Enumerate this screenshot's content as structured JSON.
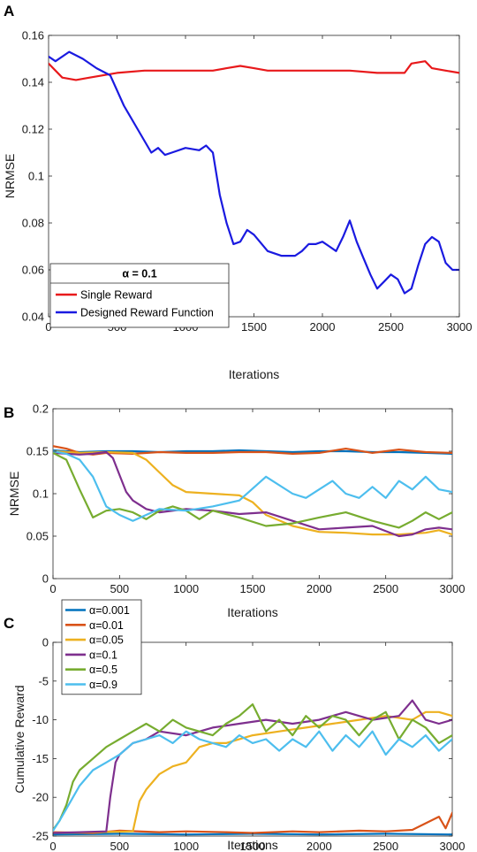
{
  "panel_labels": [
    "A",
    "B",
    "C"
  ],
  "chart_data": [
    {
      "type": "line",
      "xlabel": "Iterations",
      "ylabel": "NRMSE",
      "xlim": [
        0,
        3000
      ],
      "ylim": [
        0.04,
        0.16
      ],
      "xticks": [
        0,
        500,
        1000,
        1500,
        2000,
        2500,
        3000
      ],
      "yticks": [
        0.04,
        0.06,
        0.08,
        0.1,
        0.12,
        0.14,
        0.16
      ],
      "ytick_labels": [
        "0.04",
        "0.06",
        "0.08",
        "0.1",
        "0.12",
        "0.14",
        "0.16"
      ],
      "grid": false,
      "legend": {
        "title": "α = 0.1",
        "position": "bottom-left"
      },
      "series": [
        {
          "name": "Single Reward",
          "color": "#e8191b",
          "x": [
            0,
            100,
            200,
            300,
            400,
            500,
            700,
            900,
            1000,
            1200,
            1300,
            1400,
            1500,
            1600,
            1800,
            2000,
            2200,
            2400,
            2600,
            2650,
            2750,
            2800,
            2900,
            3000
          ],
          "y": [
            0.148,
            0.142,
            0.141,
            0.142,
            0.143,
            0.144,
            0.145,
            0.145,
            0.145,
            0.145,
            0.146,
            0.147,
            0.146,
            0.145,
            0.145,
            0.145,
            0.145,
            0.144,
            0.144,
            0.148,
            0.149,
            0.146,
            0.145,
            0.144
          ]
        },
        {
          "name": "Designed Reward Function",
          "color": "#1a1ae0",
          "x": [
            0,
            50,
            150,
            250,
            350,
            450,
            550,
            650,
            750,
            800,
            850,
            900,
            1000,
            1100,
            1150,
            1200,
            1250,
            1300,
            1350,
            1400,
            1450,
            1500,
            1600,
            1700,
            1800,
            1850,
            1900,
            1950,
            2000,
            2050,
            2100,
            2150,
            2200,
            2250,
            2300,
            2350,
            2400,
            2450,
            2500,
            2550,
            2600,
            2650,
            2700,
            2750,
            2800,
            2850,
            2900,
            2950,
            3000
          ],
          "y": [
            0.151,
            0.149,
            0.153,
            0.15,
            0.146,
            0.143,
            0.13,
            0.12,
            0.11,
            0.112,
            0.109,
            0.11,
            0.112,
            0.111,
            0.113,
            0.11,
            0.092,
            0.08,
            0.071,
            0.072,
            0.077,
            0.075,
            0.068,
            0.066,
            0.066,
            0.068,
            0.071,
            0.071,
            0.072,
            0.07,
            0.068,
            0.074,
            0.081,
            0.072,
            0.065,
            0.058,
            0.052,
            0.055,
            0.058,
            0.056,
            0.05,
            0.052,
            0.062,
            0.071,
            0.074,
            0.072,
            0.063,
            0.06,
            0.06
          ]
        }
      ]
    },
    {
      "type": "line",
      "xlabel": "Iterations",
      "ylabel": "NRMSE",
      "xlim": [
        0,
        3000
      ],
      "ylim": [
        0,
        0.2
      ],
      "xticks": [
        0,
        500,
        1000,
        1500,
        2000,
        2500,
        3000
      ],
      "yticks": [
        0,
        0.05,
        0.1,
        0.15,
        0.2
      ],
      "ytick_labels": [
        "0",
        "0.05",
        "0.1",
        "0.15",
        "0.2"
      ],
      "grid": false,
      "series": [
        {
          "name": "α=0.001",
          "color": "#0072bd",
          "x": [
            0,
            200,
            400,
            600,
            800,
            1000,
            1200,
            1400,
            1600,
            1800,
            2000,
            2200,
            2400,
            2600,
            2800,
            3000
          ],
          "y": [
            0.151,
            0.149,
            0.15,
            0.15,
            0.149,
            0.15,
            0.15,
            0.151,
            0.15,
            0.149,
            0.15,
            0.15,
            0.149,
            0.149,
            0.148,
            0.147
          ]
        },
        {
          "name": "α=0.01",
          "color": "#d95319",
          "x": [
            0,
            100,
            200,
            300,
            400,
            600,
            800,
            1000,
            1200,
            1400,
            1600,
            1800,
            2000,
            2200,
            2400,
            2600,
            2800,
            3000
          ],
          "y": [
            0.156,
            0.153,
            0.148,
            0.146,
            0.148,
            0.147,
            0.149,
            0.148,
            0.148,
            0.149,
            0.149,
            0.147,
            0.148,
            0.153,
            0.148,
            0.152,
            0.149,
            0.148
          ]
        },
        {
          "name": "α=0.05",
          "color": "#edb120",
          "x": [
            0,
            200,
            400,
            600,
            700,
            800,
            900,
            1000,
            1200,
            1400,
            1500,
            1600,
            1800,
            2000,
            2200,
            2400,
            2600,
            2800,
            2900,
            3000
          ],
          "y": [
            0.15,
            0.148,
            0.149,
            0.148,
            0.14,
            0.125,
            0.11,
            0.102,
            0.1,
            0.098,
            0.09,
            0.075,
            0.062,
            0.055,
            0.054,
            0.052,
            0.052,
            0.054,
            0.057,
            0.052
          ]
        },
        {
          "name": "α=0.1",
          "color": "#7e2f8e",
          "x": [
            0,
            200,
            300,
            400,
            450,
            500,
            550,
            600,
            700,
            800,
            1000,
            1200,
            1400,
            1600,
            1800,
            2000,
            2200,
            2400,
            2600,
            2700,
            2800,
            2900,
            3000
          ],
          "y": [
            0.148,
            0.146,
            0.147,
            0.149,
            0.142,
            0.122,
            0.102,
            0.092,
            0.082,
            0.078,
            0.082,
            0.08,
            0.076,
            0.078,
            0.068,
            0.058,
            0.06,
            0.062,
            0.05,
            0.052,
            0.058,
            0.06,
            0.058
          ]
        },
        {
          "name": "α=0.5",
          "color": "#77ac30",
          "x": [
            0,
            100,
            200,
            300,
            400,
            500,
            600,
            700,
            800,
            900,
            1000,
            1100,
            1200,
            1400,
            1600,
            1800,
            2000,
            2200,
            2400,
            2600,
            2700,
            2800,
            2900,
            3000
          ],
          "y": [
            0.148,
            0.14,
            0.105,
            0.072,
            0.08,
            0.082,
            0.078,
            0.07,
            0.08,
            0.085,
            0.08,
            0.07,
            0.08,
            0.072,
            0.062,
            0.065,
            0.072,
            0.078,
            0.068,
            0.06,
            0.068,
            0.078,
            0.07,
            0.078
          ]
        },
        {
          "name": "α=0.9",
          "color": "#4dbeee",
          "x": [
            0,
            100,
            200,
            300,
            400,
            500,
            600,
            700,
            800,
            1000,
            1200,
            1400,
            1600,
            1800,
            1900,
            2000,
            2100,
            2200,
            2300,
            2400,
            2500,
            2600,
            2700,
            2800,
            2900,
            3000
          ],
          "y": [
            0.15,
            0.147,
            0.14,
            0.12,
            0.085,
            0.075,
            0.068,
            0.075,
            0.082,
            0.08,
            0.085,
            0.092,
            0.12,
            0.1,
            0.095,
            0.105,
            0.115,
            0.1,
            0.095,
            0.108,
            0.095,
            0.115,
            0.105,
            0.12,
            0.105,
            0.102
          ]
        }
      ]
    },
    {
      "type": "line",
      "xlabel": "Iterations",
      "ylabel": "Cumulative Reward",
      "xlim": [
        0,
        3000
      ],
      "ylim": [
        -25,
        0
      ],
      "xticks": [
        0,
        500,
        1000,
        1500,
        2000,
        2500,
        3000
      ],
      "yticks": [
        -25,
        -20,
        -15,
        -10,
        -5,
        0
      ],
      "ytick_labels": [
        "-25",
        "-20",
        "-15",
        "-10",
        "-5",
        "0"
      ],
      "grid": false,
      "legend": {
        "position": "top-left",
        "entries": [
          "α=0.001",
          "α=0.01",
          "α=0.05",
          "α=0.1",
          "α=0.5",
          "α=0.9"
        ]
      },
      "series": [
        {
          "name": "α=0.001",
          "color": "#0072bd",
          "x": [
            0,
            500,
            1000,
            1500,
            2000,
            2500,
            3000
          ],
          "y": [
            -24.8,
            -24.7,
            -24.8,
            -24.7,
            -24.8,
            -24.7,
            -24.8
          ]
        },
        {
          "name": "α=0.01",
          "color": "#d95319",
          "x": [
            0,
            300,
            500,
            800,
            1000,
            1300,
            1500,
            1800,
            2000,
            2300,
            2500,
            2700,
            2900,
            2950,
            3000
          ],
          "y": [
            -24.5,
            -24.6,
            -24.3,
            -24.5,
            -24.4,
            -24.5,
            -24.6,
            -24.4,
            -24.5,
            -24.3,
            -24.4,
            -24.2,
            -22.5,
            -24.0,
            -22.0
          ]
        },
        {
          "name": "α=0.05",
          "color": "#edb120",
          "x": [
            0,
            300,
            600,
            650,
            700,
            800,
            900,
            1000,
            1100,
            1200,
            1300,
            1500,
            1700,
            1900,
            2100,
            2300,
            2500,
            2700,
            2800,
            2900,
            3000
          ],
          "y": [
            -24.6,
            -24.5,
            -24.4,
            -20.5,
            -19.0,
            -17.0,
            -16.0,
            -15.5,
            -13.5,
            -13.0,
            -13.0,
            -12.0,
            -11.5,
            -11.0,
            -10.5,
            -10.0,
            -9.5,
            -10.0,
            -9.0,
            -9.0,
            -9.5
          ]
        },
        {
          "name": "α=0.1",
          "color": "#7e2f8e",
          "x": [
            0,
            200,
            400,
            430,
            470,
            500,
            600,
            700,
            800,
            1000,
            1200,
            1400,
            1600,
            1800,
            2000,
            2200,
            2400,
            2600,
            2700,
            2800,
            2900,
            3000
          ],
          "y": [
            -24.6,
            -24.5,
            -24.4,
            -20.0,
            -15.5,
            -14.5,
            -13.0,
            -12.5,
            -11.5,
            -12.0,
            -11.0,
            -10.5,
            -10.0,
            -10.5,
            -10.0,
            -9.0,
            -10.0,
            -9.5,
            -7.5,
            -10.0,
            -10.5,
            -10.0
          ]
        },
        {
          "name": "α=0.5",
          "color": "#77ac30",
          "x": [
            0,
            50,
            100,
            150,
            200,
            300,
            400,
            500,
            600,
            700,
            800,
            900,
            1000,
            1100,
            1200,
            1300,
            1400,
            1500,
            1600,
            1700,
            1800,
            1900,
            2000,
            2100,
            2200,
            2300,
            2400,
            2500,
            2600,
            2700,
            2800,
            2900,
            3000
          ],
          "y": [
            -24.2,
            -23.0,
            -21.0,
            -18.0,
            -16.5,
            -15.0,
            -13.5,
            -12.5,
            -11.5,
            -10.5,
            -11.5,
            -10.0,
            -11.0,
            -11.5,
            -12.0,
            -10.5,
            -9.5,
            -8.0,
            -11.5,
            -10.0,
            -12.0,
            -9.5,
            -11.0,
            -9.5,
            -10.0,
            -12.0,
            -10.0,
            -9.0,
            -12.5,
            -10.0,
            -11.0,
            -13.0,
            -12.0
          ]
        },
        {
          "name": "α=0.9",
          "color": "#4dbeee",
          "x": [
            0,
            50,
            100,
            200,
            300,
            400,
            500,
            600,
            700,
            800,
            900,
            1000,
            1100,
            1200,
            1300,
            1400,
            1500,
            1600,
            1700,
            1800,
            1900,
            2000,
            2100,
            2200,
            2300,
            2400,
            2500,
            2600,
            2700,
            2800,
            2900,
            3000
          ],
          "y": [
            -24.3,
            -23.0,
            -21.5,
            -18.5,
            -16.5,
            -15.5,
            -14.5,
            -13.0,
            -12.5,
            -12.0,
            -13.0,
            -11.5,
            -12.5,
            -13.0,
            -13.5,
            -12.0,
            -13.0,
            -12.5,
            -14.0,
            -12.5,
            -13.5,
            -11.5,
            -14.0,
            -12.0,
            -13.5,
            -11.5,
            -14.5,
            -12.5,
            -13.5,
            -12.0,
            -14.0,
            -12.5
          ]
        }
      ]
    }
  ]
}
